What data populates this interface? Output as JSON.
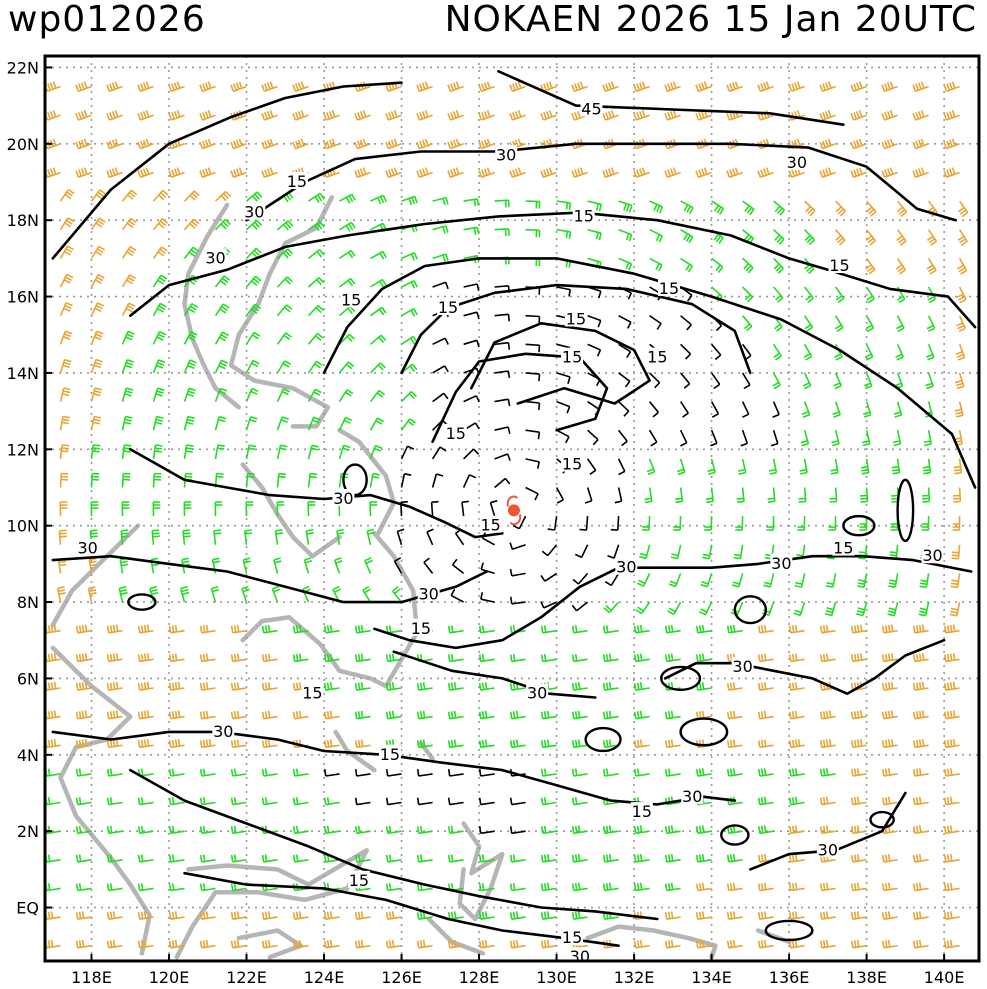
{
  "header": {
    "product_id": "wp012026",
    "storm_title": "NOKAEN 2026 15 Jan 20UTC"
  },
  "colors": {
    "contour": "#000000",
    "land": "#b5b5b5",
    "grid": "#9a9a9a",
    "barb_calm": "#000000",
    "barb_moderate": "#22dd22",
    "barb_strong": "#e8a532",
    "barb_gale": "#f07828",
    "storm_marker": "#ee5533"
  },
  "chart_data": {
    "type": "map",
    "lon_range": [
      116.8,
      140.9
    ],
    "lat_range": [
      -1.4,
      22.3
    ],
    "lat_ticks": [
      "22N",
      "20N",
      "18N",
      "16N",
      "14N",
      "12N",
      "10N",
      "8N",
      "6N",
      "4N",
      "2N",
      "EQ"
    ],
    "lon_ticks": [
      "118E",
      "120E",
      "122E",
      "124E",
      "126E",
      "128E",
      "130E",
      "132E",
      "134E",
      "136E",
      "138E",
      "140E"
    ],
    "storm_center": {
      "lon": 128.9,
      "lat": 10.4,
      "symbol": "tropical cyclone"
    },
    "contour_levels_kt": [
      "15",
      "30",
      "45"
    ],
    "contour_labels": [
      {
        "text": "45",
        "lon": 130.9,
        "lat": 20.9
      },
      {
        "text": "30",
        "lon": 128.7,
        "lat": 19.7
      },
      {
        "text": "30",
        "lon": 136.2,
        "lat": 19.5
      },
      {
        "text": "15",
        "lon": 123.3,
        "lat": 19.0
      },
      {
        "text": "30",
        "lon": 122.2,
        "lat": 18.2
      },
      {
        "text": "30",
        "lon": 121.2,
        "lat": 17.0
      },
      {
        "text": "15",
        "lon": 130.7,
        "lat": 18.1
      },
      {
        "text": "15",
        "lon": 137.3,
        "lat": 16.8
      },
      {
        "text": "15",
        "lon": 124.7,
        "lat": 15.9
      },
      {
        "text": "15",
        "lon": 127.2,
        "lat": 15.7
      },
      {
        "text": "15",
        "lon": 132.9,
        "lat": 16.2
      },
      {
        "text": "15",
        "lon": 130.5,
        "lat": 15.4
      },
      {
        "text": "15",
        "lon": 130.4,
        "lat": 14.4
      },
      {
        "text": "15",
        "lon": 132.6,
        "lat": 14.4
      },
      {
        "text": "15",
        "lon": 127.4,
        "lat": 12.4
      },
      {
        "text": "15",
        "lon": 130.4,
        "lat": 11.6
      },
      {
        "text": "30",
        "lon": 124.5,
        "lat": 10.7
      },
      {
        "text": "15",
        "lon": 128.3,
        "lat": 10.0
      },
      {
        "text": "30",
        "lon": 117.9,
        "lat": 9.4
      },
      {
        "text": "15",
        "lon": 137.4,
        "lat": 9.4
      },
      {
        "text": "30",
        "lon": 139.7,
        "lat": 9.2
      },
      {
        "text": "30",
        "lon": 131.8,
        "lat": 8.9
      },
      {
        "text": "30",
        "lon": 135.8,
        "lat": 9.0
      },
      {
        "text": "30",
        "lon": 126.7,
        "lat": 8.2
      },
      {
        "text": "15",
        "lon": 126.5,
        "lat": 7.3
      },
      {
        "text": "30",
        "lon": 134.8,
        "lat": 6.3
      },
      {
        "text": "15",
        "lon": 123.7,
        "lat": 5.6
      },
      {
        "text": "30",
        "lon": 129.5,
        "lat": 5.6
      },
      {
        "text": "30",
        "lon": 121.4,
        "lat": 4.6
      },
      {
        "text": "15",
        "lon": 125.7,
        "lat": 4.0
      },
      {
        "text": "30",
        "lon": 133.5,
        "lat": 2.9
      },
      {
        "text": "15",
        "lon": 132.2,
        "lat": 2.5
      },
      {
        "text": "30",
        "lon": 137.0,
        "lat": 1.5
      },
      {
        "text": "15",
        "lon": 124.9,
        "lat": 0.7
      },
      {
        "text": "15",
        "lon": 130.4,
        "lat": -0.8
      },
      {
        "text": "30",
        "lon": 130.6,
        "lat": -1.3
      }
    ]
  }
}
